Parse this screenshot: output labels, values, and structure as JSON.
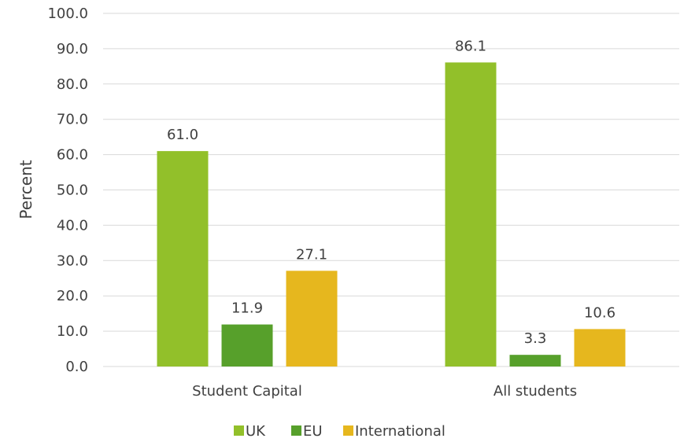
{
  "chart_data": {
    "type": "bar",
    "categories": [
      "Student Capital",
      "All students"
    ],
    "series": [
      {
        "name": "UK",
        "values": [
          61.0,
          86.1
        ],
        "color": "#92c02a"
      },
      {
        "name": "EU",
        "values": [
          11.9,
          3.3
        ],
        "color": "#57a02b"
      },
      {
        "name": "International",
        "values": [
          27.1,
          10.6
        ],
        "color": "#e6b71e"
      }
    ],
    "title": "",
    "xlabel": "",
    "ylabel": "Percent",
    "ylim": [
      0,
      100
    ],
    "yticks": [
      "0.0",
      "10.0",
      "20.0",
      "30.0",
      "40.0",
      "50.0",
      "60.0",
      "70.0",
      "80.0",
      "90.0",
      "100.0"
    ],
    "data_labels": [
      [
        "61.0",
        "86.1"
      ],
      [
        "11.9",
        "3.3"
      ],
      [
        "27.1",
        "10.6"
      ]
    ],
    "grid": true,
    "legend_position": "bottom"
  }
}
